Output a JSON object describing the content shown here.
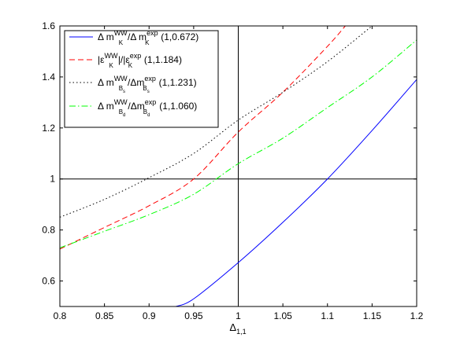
{
  "chart_data": {
    "type": "line",
    "xlabel_main": "Δ",
    "xlabel_sub": "1,1",
    "xlim": [
      0.8,
      1.2
    ],
    "ylim": [
      0.5,
      1.6
    ],
    "xticks": [
      "0.8",
      "0.85",
      "0.9",
      "0.95",
      "1",
      "1.05",
      "1.1",
      "1.15",
      "1.2"
    ],
    "yticks": [
      "0.6",
      "0.8",
      "1",
      "1.2",
      "1.4",
      "1.6"
    ],
    "xtick_values": [
      0.8,
      0.85,
      0.9,
      0.95,
      1.0,
      1.05,
      1.1,
      1.15,
      1.2
    ],
    "ytick_values": [
      0.6,
      0.8,
      1.0,
      1.2,
      1.4,
      1.6
    ],
    "reference_lines": {
      "x": 1.0,
      "y": 1.0
    },
    "legend_position": "top-left",
    "series": [
      {
        "name": "Δ m_K^WW/Δ m_K^exp (1,0.672)",
        "color": "#0000ff",
        "dash": "solid",
        "x": [
          0.93,
          0.95,
          1.0,
          1.05,
          1.1,
          1.15,
          1.2
        ],
        "y": [
          0.5,
          0.53,
          0.672,
          0.83,
          1.0,
          1.19,
          1.39
        ]
      },
      {
        "name": "|ε_K|^WW/|ε_K|^exp (1,1.184)",
        "color": "#ff0000",
        "dash": "dashed",
        "x": [
          0.8,
          0.85,
          0.9,
          0.95,
          1.0,
          1.05,
          1.1,
          1.12
        ],
        "y": [
          0.725,
          0.81,
          0.895,
          1.0,
          1.184,
          1.34,
          1.52,
          1.6
        ]
      },
      {
        "name": "Δ m_Bs^WW/Δm_Bs^exp (1,1.231)",
        "color": "#000000",
        "dash": "dotted",
        "x": [
          0.8,
          0.85,
          0.9,
          0.95,
          1.0,
          1.05,
          1.1,
          1.15
        ],
        "y": [
          0.85,
          0.92,
          1.005,
          1.1,
          1.231,
          1.34,
          1.46,
          1.6
        ]
      },
      {
        "name": "Δ m_Bd^WW/Δm_Bd^exp (1,1.060)",
        "color": "#00ff00",
        "dash": "dashdot",
        "x": [
          0.8,
          0.85,
          0.9,
          0.95,
          1.0,
          1.05,
          1.1,
          1.15,
          1.2
        ],
        "y": [
          0.73,
          0.795,
          0.86,
          0.94,
          1.06,
          1.16,
          1.28,
          1.4,
          1.545
        ]
      }
    ],
    "legend": [
      {
        "pre": "Δ m",
        "sup1": "WW",
        "sub1": "K",
        "mid": "/Δ m",
        "sup2": "exp",
        "sub2": "K",
        "subsub": "",
        "tail": " (1,0.672)"
      },
      {
        "pre": "|ε",
        "sup1": "WW",
        "sub1": "K",
        "mid": "|/|ε",
        "sup2": "exp",
        "sub2": "K",
        "subsub": "",
        "tail": " (1,1.184)"
      },
      {
        "pre": "Δ m",
        "sup1": "WW",
        "sub1": "B",
        "mid": "/Δm",
        "sup2": "exp",
        "sub2": "B",
        "subsub": "s",
        "tail": " (1,1.231)"
      },
      {
        "pre": "Δ m",
        "sup1": "WW",
        "sub1": "B",
        "mid": "/Δm",
        "sup2": "exp",
        "sub2": "B",
        "subsub": "d",
        "tail": " (1,1.060)"
      }
    ]
  }
}
